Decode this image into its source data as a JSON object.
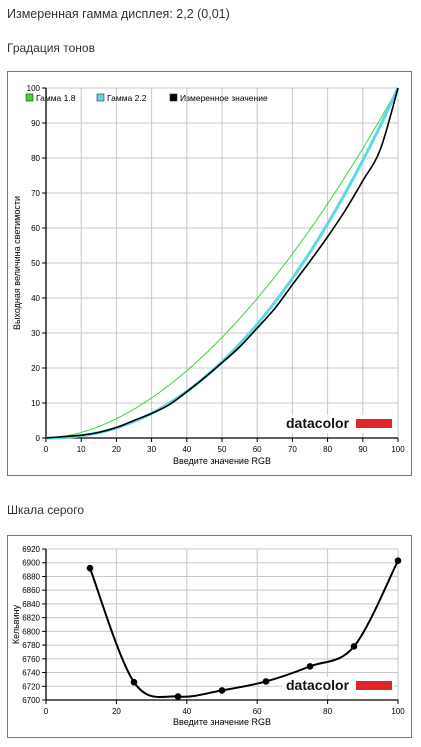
{
  "header": {
    "measured_gamma": "Измеренная гамма дисплея: 2,2 (0,01)",
    "tone_title": "Градация тонов",
    "gray_title": "Шкала серого"
  },
  "colors": {
    "gamma18": "#3cd23c",
    "gamma22": "#5fd8e6",
    "measured": "#000000",
    "grid": "#c8c8c8",
    "logo_bar": "#e2242b"
  },
  "logo_text": "datacolor",
  "chart_data": [
    {
      "type": "line",
      "xlabel": "Введите значение RGB",
      "ylabel": "Выходная величина светимости",
      "xlim": [
        0,
        100
      ],
      "ylim": [
        0,
        100
      ],
      "xticks": [
        "0",
        "10",
        "20",
        "30",
        "40",
        "50",
        "60",
        "70",
        "80",
        "90",
        "100"
      ],
      "yticks": [
        "0",
        "10",
        "20",
        "30",
        "40",
        "50",
        "60",
        "70",
        "80",
        "90",
        "100"
      ],
      "grid": true,
      "legend": "top-left",
      "series": [
        {
          "name": "Гамма 1.8",
          "kind": "power",
          "gamma": 1.8,
          "color_key": "gamma18"
        },
        {
          "name": "Гамма 2.2",
          "kind": "power",
          "gamma": 2.2,
          "color_key": "gamma22"
        },
        {
          "name": "Измеренное значение",
          "kind": "points",
          "color_key": "measured",
          "x": [
            0,
            5,
            10,
            15,
            20,
            25,
            30,
            35,
            40,
            45,
            50,
            55,
            60,
            65,
            70,
            75,
            80,
            85,
            90,
            95,
            100
          ],
          "y": [
            0,
            0.4,
            0.8,
            1.6,
            3.0,
            5.0,
            7.0,
            9.5,
            13.2,
            17.2,
            21.5,
            26.0,
            31.4,
            37.0,
            43.8,
            50.5,
            57.5,
            65.0,
            73.5,
            82.5,
            100
          ]
        }
      ]
    },
    {
      "type": "line",
      "xlabel": "Введите значение RGB",
      "ylabel": "Кельвину",
      "xlim": [
        0,
        100
      ],
      "ylim": [
        6700,
        6920
      ],
      "xticks": [
        "0",
        "20",
        "40",
        "60",
        "80",
        "100"
      ],
      "yticks": [
        "6700",
        "6720",
        "6740",
        "6760",
        "6780",
        "6800",
        "6820",
        "6840",
        "6860",
        "6880",
        "6900",
        "6920"
      ],
      "grid": true,
      "series": [
        {
          "name": "",
          "color_key": "measured",
          "x": [
            12.5,
            25,
            37.5,
            50,
            62.5,
            75,
            87.5,
            100
          ],
          "y": [
            6892,
            6726,
            6705,
            6714,
            6727,
            6749,
            6778,
            6903
          ]
        }
      ]
    }
  ]
}
